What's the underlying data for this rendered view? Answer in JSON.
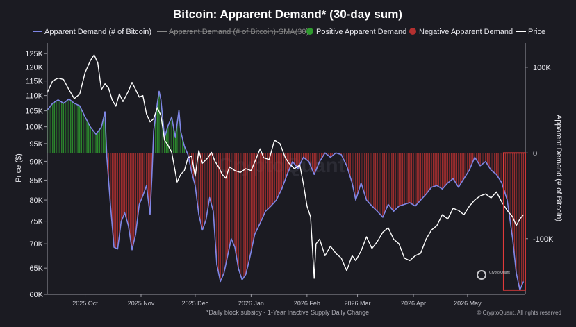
{
  "chart_data": {
    "type": "line",
    "title": "Bitcoin: Apparent Demand* (30-day sum)",
    "legend": [
      {
        "name": "Apparent Demand (# of Bitcoin)",
        "color": "#7f86e6",
        "style": "line"
      },
      {
        "name": "Apparent Demand (# of Bitcoin)-SMA(30)",
        "color": "#8a8a8a",
        "style": "struck"
      },
      {
        "name": "Positive Apparent Demand",
        "color": "#2e9a2e",
        "style": "dot"
      },
      {
        "name": "Negative Apparent Demand",
        "color": "#b43030",
        "style": "dot"
      },
      {
        "name": "Price",
        "color": "#ffffff",
        "style": "line"
      }
    ],
    "legend_position": "top",
    "y_left_label": "Price ($)",
    "y_right_label": "Apparent Demand (# of Bitcoin)",
    "y_left_ticks": [
      "125K",
      "120K",
      "115K",
      "110K",
      "105K",
      "100K",
      "95K",
      "90K",
      "85K",
      "80K",
      "75K",
      "70K",
      "65K",
      "60K"
    ],
    "y_left_scale": "log",
    "y_left_range": [
      60000,
      128000
    ],
    "y_right_ticks": [
      "100K",
      "0",
      "-100K"
    ],
    "y_right_range": [
      -165000,
      125000
    ],
    "x_ticks": [
      "2025 Oct",
      "2025 Nov",
      "2025 Dec",
      "2026 Jan",
      "2026 Feb",
      "2026 Mar",
      "2026 Apr",
      "2026 May"
    ],
    "x_range": [
      "2025-09-10",
      "2026-06-02"
    ],
    "footnote": "*Daily block subsidy - 1-Year Inactive Supply Daily Change",
    "source": "© CryptoQuant. All rights reserved",
    "watermark": "CryptoQuant",
    "logo_text": "Crypto Quant",
    "highlight_box": {
      "x_start": "2026-05-21",
      "x_end": "2026-06-02",
      "y_top": 0,
      "y_bottom": -160000,
      "color": "#e03a3a"
    },
    "colors": {
      "positive": "#2e9a2e",
      "negative": "#b43030",
      "demand": "#7f86e6",
      "price": "#ffffff",
      "background": "#1b1b22"
    },
    "demand_series": {
      "name": "Apparent Demand (# of Bitcoin)",
      "points": [
        [
          "2025-09-10",
          50000
        ],
        [
          "2025-09-13",
          58000
        ],
        [
          "2025-09-16",
          62000
        ],
        [
          "2025-09-19",
          58000
        ],
        [
          "2025-09-22",
          63000
        ],
        [
          "2025-09-25",
          58000
        ],
        [
          "2025-09-28",
          55000
        ],
        [
          "2025-10-01",
          42000
        ],
        [
          "2025-10-04",
          30000
        ],
        [
          "2025-10-07",
          22000
        ],
        [
          "2025-10-10",
          30000
        ],
        [
          "2025-10-12",
          48000
        ],
        [
          "2025-10-13",
          -4000
        ],
        [
          "2025-10-15",
          -60000
        ],
        [
          "2025-10-17",
          -110000
        ],
        [
          "2025-10-19",
          -112000
        ],
        [
          "2025-10-21",
          -80000
        ],
        [
          "2025-10-23",
          -70000
        ],
        [
          "2025-10-25",
          -85000
        ],
        [
          "2025-10-27",
          -113000
        ],
        [
          "2025-10-29",
          -95000
        ],
        [
          "2025-10-31",
          -60000
        ],
        [
          "2025-11-02",
          -50000
        ],
        [
          "2025-11-04",
          -38000
        ],
        [
          "2025-11-06",
          -72000
        ],
        [
          "2025-11-07",
          -28000
        ],
        [
          "2025-11-08",
          26000
        ],
        [
          "2025-11-10",
          58000
        ],
        [
          "2025-11-11",
          72000
        ],
        [
          "2025-11-12",
          62000
        ],
        [
          "2025-11-14",
          18000
        ],
        [
          "2025-11-16",
          32000
        ],
        [
          "2025-11-18",
          42000
        ],
        [
          "2025-11-20",
          18000
        ],
        [
          "2025-11-22",
          50000
        ],
        [
          "2025-11-23",
          25000
        ],
        [
          "2025-11-25",
          8000
        ],
        [
          "2025-11-27",
          -2000
        ],
        [
          "2025-11-29",
          -22000
        ],
        [
          "2025-12-01",
          -38000
        ],
        [
          "2025-12-03",
          -72000
        ],
        [
          "2025-12-05",
          -90000
        ],
        [
          "2025-12-07",
          -78000
        ],
        [
          "2025-12-09",
          -52000
        ],
        [
          "2025-12-11",
          -68000
        ],
        [
          "2025-12-13",
          -130000
        ],
        [
          "2025-12-15",
          -150000
        ],
        [
          "2025-12-17",
          -140000
        ],
        [
          "2025-12-19",
          -120000
        ],
        [
          "2025-12-21",
          -100000
        ],
        [
          "2025-12-23",
          -110000
        ],
        [
          "2025-12-25",
          -135000
        ],
        [
          "2025-12-27",
          -148000
        ],
        [
          "2025-12-29",
          -142000
        ],
        [
          "2025-12-31",
          -125000
        ],
        [
          "2026-01-03",
          -95000
        ],
        [
          "2026-01-06",
          -82000
        ],
        [
          "2026-01-09",
          -68000
        ],
        [
          "2026-01-12",
          -62000
        ],
        [
          "2026-01-15",
          -55000
        ],
        [
          "2026-01-18",
          -42000
        ],
        [
          "2026-01-21",
          -25000
        ],
        [
          "2026-01-24",
          -10000
        ],
        [
          "2026-01-27",
          -18000
        ],
        [
          "2026-01-30",
          -5000
        ],
        [
          "2026-02-02",
          -10000
        ],
        [
          "2026-02-05",
          -25000
        ],
        [
          "2026-02-08",
          -10000
        ],
        [
          "2026-02-11",
          0
        ],
        [
          "2026-02-14",
          -5000
        ],
        [
          "2026-02-17",
          0
        ],
        [
          "2026-02-20",
          -2000
        ],
        [
          "2026-02-23",
          -15000
        ],
        [
          "2026-02-26",
          -35000
        ],
        [
          "2026-02-28",
          -55000
        ],
        [
          "2026-03-03",
          -35000
        ],
        [
          "2026-03-06",
          -55000
        ],
        [
          "2026-03-09",
          -62000
        ],
        [
          "2026-03-12",
          -68000
        ],
        [
          "2026-03-15",
          -75000
        ],
        [
          "2026-03-18",
          -60000
        ],
        [
          "2026-03-21",
          -68000
        ],
        [
          "2026-03-24",
          -62000
        ],
        [
          "2026-03-27",
          -60000
        ],
        [
          "2026-03-30",
          -58000
        ],
        [
          "2026-04-02",
          -62000
        ],
        [
          "2026-04-05",
          -55000
        ],
        [
          "2026-04-08",
          -48000
        ],
        [
          "2026-04-11",
          -40000
        ],
        [
          "2026-04-14",
          -38000
        ],
        [
          "2026-04-17",
          -42000
        ],
        [
          "2026-04-20",
          -35000
        ],
        [
          "2026-04-23",
          -30000
        ],
        [
          "2026-04-26",
          -40000
        ],
        [
          "2026-04-29",
          -30000
        ],
        [
          "2026-05-02",
          -20000
        ],
        [
          "2026-05-05",
          -5000
        ],
        [
          "2026-05-08",
          -15000
        ],
        [
          "2026-05-11",
          -10000
        ],
        [
          "2026-05-14",
          -20000
        ],
        [
          "2026-05-17",
          -25000
        ],
        [
          "2026-05-20",
          -35000
        ],
        [
          "2026-05-23",
          -55000
        ],
        [
          "2026-05-26",
          -100000
        ],
        [
          "2026-05-28",
          -140000
        ],
        [
          "2026-05-30",
          -160000
        ],
        [
          "2026-06-01",
          -150000
        ]
      ]
    },
    "price_series": {
      "name": "Price",
      "points": [
        [
          "2025-09-10",
          111000
        ],
        [
          "2025-09-13",
          115000
        ],
        [
          "2025-09-16",
          116000
        ],
        [
          "2025-09-19",
          115500
        ],
        [
          "2025-09-22",
          112000
        ],
        [
          "2025-09-25",
          109000
        ],
        [
          "2025-09-28",
          110500
        ],
        [
          "2025-10-01",
          118000
        ],
        [
          "2025-10-04",
          122500
        ],
        [
          "2025-10-06",
          124500
        ],
        [
          "2025-10-08",
          121500
        ],
        [
          "2025-10-10",
          112000
        ],
        [
          "2025-10-12",
          114000
        ],
        [
          "2025-10-14",
          112500
        ],
        [
          "2025-10-16",
          108500
        ],
        [
          "2025-10-18",
          106500
        ],
        [
          "2025-10-20",
          110500
        ],
        [
          "2025-10-22",
          108000
        ],
        [
          "2025-10-25",
          111500
        ],
        [
          "2025-10-27",
          114500
        ],
        [
          "2025-10-29",
          112000
        ],
        [
          "2025-10-31",
          109500
        ],
        [
          "2025-11-02",
          110000
        ],
        [
          "2025-11-04",
          104000
        ],
        [
          "2025-11-06",
          101500
        ],
        [
          "2025-11-08",
          102500
        ],
        [
          "2025-11-10",
          106000
        ],
        [
          "2025-11-12",
          103500
        ],
        [
          "2025-11-14",
          96000
        ],
        [
          "2025-11-16",
          94500
        ],
        [
          "2025-11-18",
          92500
        ],
        [
          "2025-11-21",
          84500
        ],
        [
          "2025-11-23",
          86500
        ],
        [
          "2025-11-25",
          87500
        ],
        [
          "2025-11-27",
          91000
        ],
        [
          "2025-11-29",
          91500
        ],
        [
          "2025-12-01",
          86000
        ],
        [
          "2025-12-03",
          93000
        ],
        [
          "2025-12-05",
          89500
        ],
        [
          "2025-12-08",
          91000
        ],
        [
          "2025-12-10",
          92500
        ],
        [
          "2025-12-12",
          90000
        ],
        [
          "2025-12-14",
          88500
        ],
        [
          "2025-12-16",
          86500
        ],
        [
          "2025-12-18",
          85500
        ],
        [
          "2025-12-20",
          88500
        ],
        [
          "2025-12-23",
          87500
        ],
        [
          "2025-12-26",
          87000
        ],
        [
          "2025-12-29",
          88000
        ],
        [
          "2026-01-01",
          87500
        ],
        [
          "2026-01-04",
          91000
        ],
        [
          "2026-01-06",
          93500
        ],
        [
          "2026-01-08",
          91000
        ],
        [
          "2026-01-11",
          90500
        ],
        [
          "2026-01-14",
          96000
        ],
        [
          "2026-01-17",
          95000
        ],
        [
          "2026-01-20",
          91000
        ],
        [
          "2026-01-22",
          89500
        ],
        [
          "2026-01-25",
          88000
        ],
        [
          "2026-01-28",
          89000
        ],
        [
          "2026-01-30",
          84000
        ],
        [
          "2026-02-01",
          78500
        ],
        [
          "2026-02-03",
          76000
        ],
        [
          "2026-02-05",
          63000
        ],
        [
          "2026-02-06",
          70000
        ],
        [
          "2026-02-08",
          71000
        ],
        [
          "2026-02-11",
          67500
        ],
        [
          "2026-02-14",
          69500
        ],
        [
          "2026-02-17",
          68000
        ],
        [
          "2026-02-20",
          67000
        ],
        [
          "2026-02-23",
          64500
        ],
        [
          "2026-02-26",
          67500
        ],
        [
          "2026-02-28",
          66500
        ],
        [
          "2026-03-03",
          68500
        ],
        [
          "2026-03-06",
          71500
        ],
        [
          "2026-03-09",
          69000
        ],
        [
          "2026-03-12",
          70500
        ],
        [
          "2026-03-15",
          72500
        ],
        [
          "2026-03-18",
          73500
        ],
        [
          "2026-03-21",
          71000
        ],
        [
          "2026-03-24",
          70000
        ],
        [
          "2026-03-27",
          67000
        ],
        [
          "2026-03-30",
          66500
        ],
        [
          "2026-04-02",
          67500
        ],
        [
          "2026-04-05",
          68000
        ],
        [
          "2026-04-08",
          71000
        ],
        [
          "2026-04-11",
          73000
        ],
        [
          "2026-04-14",
          74000
        ],
        [
          "2026-04-17",
          76500
        ],
        [
          "2026-04-20",
          75500
        ],
        [
          "2026-04-23",
          78000
        ],
        [
          "2026-04-26",
          77500
        ],
        [
          "2026-04-29",
          76500
        ],
        [
          "2026-05-02",
          78500
        ],
        [
          "2026-05-05",
          80000
        ],
        [
          "2026-05-08",
          81000
        ],
        [
          "2026-05-11",
          81500
        ],
        [
          "2026-05-14",
          80500
        ],
        [
          "2026-05-17",
          82000
        ],
        [
          "2026-05-20",
          79500
        ],
        [
          "2026-05-23",
          77500
        ],
        [
          "2026-05-26",
          76000
        ],
        [
          "2026-05-28",
          74000
        ],
        [
          "2026-05-30",
          75500
        ],
        [
          "2026-06-01",
          76500
        ]
      ]
    }
  }
}
